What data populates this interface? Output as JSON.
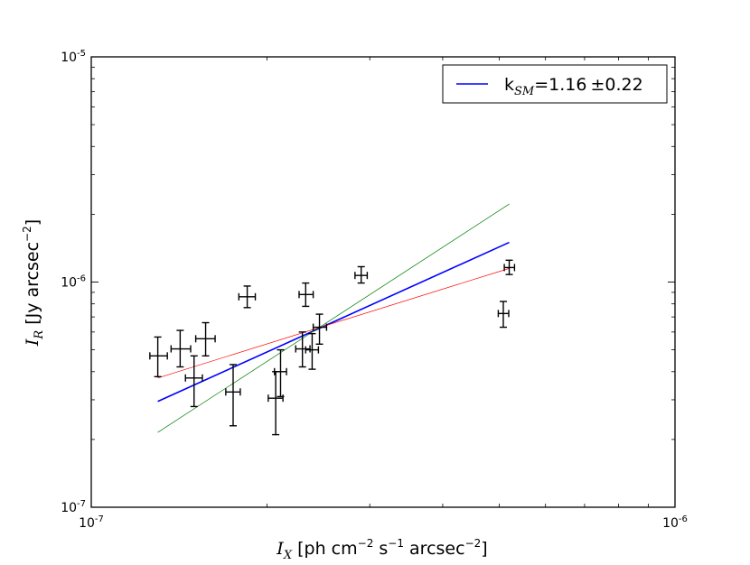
{
  "chart_data": {
    "type": "scatter",
    "title": "",
    "x_scale": "log",
    "y_scale": "log",
    "xlim": [
      1e-07,
      1e-06
    ],
    "ylim": [
      1e-07,
      1e-05
    ],
    "grid": false,
    "legend_placement": "top-right",
    "x_tick_labels": [
      {
        "value": 1e-07,
        "base": "10",
        "exp": "-7"
      },
      {
        "value": 1e-06,
        "base": "10",
        "exp": "-6"
      }
    ],
    "y_tick_labels": [
      {
        "value": 1e-07,
        "base": "10",
        "exp": "-7"
      },
      {
        "value": 1e-06,
        "base": "10",
        "exp": "-6"
      },
      {
        "value": 1e-05,
        "base": "10",
        "exp": "-5"
      }
    ],
    "xlabel": {
      "symbol": "I",
      "symbol_sub": "X",
      "pre": " [ph cm",
      "exp1": "−2",
      "mid1": " s",
      "exp2": "−1",
      "mid2": " arcsec",
      "exp3": "−2",
      "post": "]"
    },
    "ylabel": {
      "symbol": "I",
      "symbol_sub": "R",
      "pre": " [Jy arcsec",
      "exp": "−2",
      "post": "]"
    },
    "legend": {
      "color": "#0000ff",
      "k_text": "k",
      "k_sub": "SM",
      "value_text": "=1.16",
      "err_text": "±0.22"
    },
    "points": [
      {
        "x": 1.3e-07,
        "y": 4.7e-07,
        "xerr": [
          1.26e-07,
          1.35e-07
        ],
        "yerr": [
          3.8e-07,
          5.7e-07
        ]
      },
      {
        "x": 1.42e-07,
        "y": 5.05e-07,
        "xerr": [
          1.37e-07,
          1.48e-07
        ],
        "yerr": [
          4.2e-07,
          6.1e-07
        ]
      },
      {
        "x": 1.5e-07,
        "y": 3.75e-07,
        "xerr": [
          1.45e-07,
          1.55e-07
        ],
        "yerr": [
          2.8e-07,
          4.7e-07
        ]
      },
      {
        "x": 1.57e-07,
        "y": 5.6e-07,
        "xerr": [
          1.51e-07,
          1.63e-07
        ],
        "yerr": [
          4.7e-07,
          6.6e-07
        ]
      },
      {
        "x": 1.75e-07,
        "y": 3.25e-07,
        "xerr": [
          1.7e-07,
          1.8e-07
        ],
        "yerr": [
          2.3e-07,
          4.3e-07
        ]
      },
      {
        "x": 1.85e-07,
        "y": 8.6e-07,
        "xerr": [
          1.79e-07,
          1.91e-07
        ],
        "yerr": [
          7.7e-07,
          9.6e-07
        ]
      },
      {
        "x": 2.07e-07,
        "y": 3.05e-07,
        "xerr": [
          2.01e-07,
          2.13e-07
        ],
        "yerr": [
          2.1e-07,
          4e-07
        ]
      },
      {
        "x": 2.11e-07,
        "y": 4e-07,
        "xerr": [
          2.06e-07,
          2.16e-07
        ],
        "yerr": [
          3.1e-07,
          5e-07
        ]
      },
      {
        "x": 2.3e-07,
        "y": 5.05e-07,
        "xerr": [
          2.24e-07,
          2.37e-07
        ],
        "yerr": [
          4.2e-07,
          6e-07
        ]
      },
      {
        "x": 2.33e-07,
        "y": 8.8e-07,
        "xerr": [
          2.27e-07,
          2.4e-07
        ],
        "yerr": [
          7.8e-07,
          9.9e-07
        ]
      },
      {
        "x": 2.39e-07,
        "y": 5e-07,
        "xerr": [
          2.33e-07,
          2.45e-07
        ],
        "yerr": [
          4.1e-07,
          5.9e-07
        ]
      },
      {
        "x": 2.46e-07,
        "y": 6.3e-07,
        "xerr": [
          2.4e-07,
          2.53e-07
        ],
        "yerr": [
          5.3e-07,
          7.2e-07
        ]
      },
      {
        "x": 2.9e-07,
        "y": 1.07e-06,
        "xerr": [
          2.83e-07,
          2.97e-07
        ],
        "yerr": [
          9.9e-07,
          1.17e-06
        ]
      },
      {
        "x": 5.08e-07,
        "y": 7.25e-07,
        "xerr": [
          4.98e-07,
          5.19e-07
        ],
        "yerr": [
          6.3e-07,
          8.2e-07
        ]
      },
      {
        "x": 5.2e-07,
        "y": 1.16e-06,
        "xerr": [
          5.1e-07,
          5.31e-07
        ],
        "yerr": [
          1.08e-06,
          1.25e-06
        ]
      }
    ],
    "fit_lines": [
      {
        "color": "#0000ff",
        "width": 1.6,
        "x": [
          1.3e-07,
          5.2e-07
        ],
        "y": [
          2.95e-07,
          1.5e-06
        ]
      },
      {
        "color": "#ff0000",
        "width": 0.7,
        "x": [
          1.3e-07,
          5.2e-07
        ],
        "y": [
          3.75e-07,
          1.15e-06
        ]
      },
      {
        "color": "#008000",
        "width": 0.7,
        "x": [
          1.3e-07,
          5.2e-07
        ],
        "y": [
          2.15e-07,
          2.22e-06
        ]
      }
    ]
  }
}
